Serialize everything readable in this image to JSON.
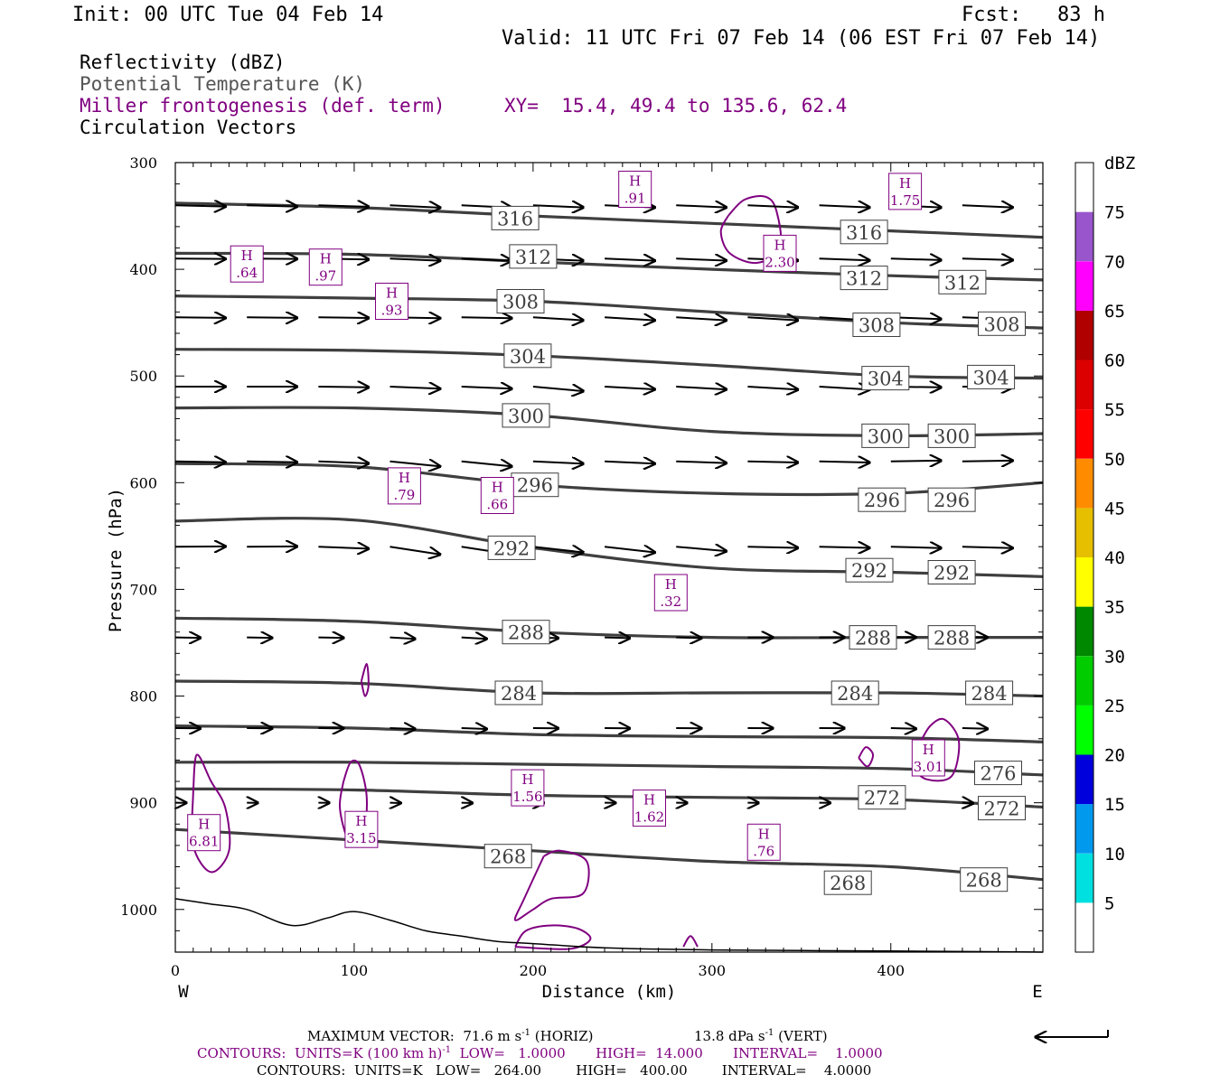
{
  "header": {
    "init": "Init: 00 UTC Tue 04 Feb 14",
    "fcst": "Fcst:   83 h",
    "valid": "Valid: 11 UTC Fri 07 Feb 14 (06 EST Fri 07 Feb 14)",
    "fields": [
      "Reflectivity (dBZ)",
      "Potential Temperature (K)",
      "Miller frontogenesis (def. term)",
      "Circulation Vectors"
    ],
    "xy": "XY=  15.4, 49.4 to 135.6, 62.4"
  },
  "colors": {
    "theta": "#3f3f3f",
    "fronto": "#800080",
    "vector": "#000000",
    "terrain": "#000000"
  },
  "chart_data": {
    "type": "contour",
    "xlabel": "Distance (km)",
    "ylabel": "Pressure (hPa)",
    "xlim": [
      0,
      485
    ],
    "ylim": [
      1040,
      300
    ],
    "x_ticks": [
      0,
      100,
      200,
      300,
      400
    ],
    "y_ticks": [
      300,
      400,
      500,
      600,
      700,
      800,
      900,
      1000
    ],
    "x_tick_labels": [
      "0",
      "100",
      "200",
      "300",
      "400"
    ],
    "y_tick_labels": [
      "300",
      "400",
      "500",
      "600",
      "700",
      "800",
      "900",
      "1000"
    ],
    "end_labels": {
      "left": "W",
      "right": "E"
    },
    "colorbar": {
      "title": "dBZ",
      "levels": [
        "5",
        "10",
        "15",
        "20",
        "25",
        "30",
        "35",
        "40",
        "45",
        "50",
        "55",
        "60",
        "65",
        "70",
        "75"
      ],
      "colors": [
        "#ffffff",
        "#00e0e0",
        "#0099ee",
        "#0000dd",
        "#00ff00",
        "#00cc00",
        "#008800",
        "#ffff00",
        "#e6bf00",
        "#ff8c00",
        "#ff0000",
        "#dd0000",
        "#b00000",
        "#ff00ff",
        "#9955cc",
        "#ffffff"
      ]
    },
    "theta_contours": [
      {
        "label": "316",
        "points": [
          [
            0,
            338
          ],
          [
            100,
            342
          ],
          [
            200,
            350
          ],
          [
            300,
            357
          ],
          [
            400,
            364
          ],
          [
            485,
            370
          ]
        ],
        "labels": [
          [
            190,
            352
          ],
          [
            385,
            365
          ]
        ]
      },
      {
        "label": "312",
        "points": [
          [
            0,
            385
          ],
          [
            100,
            386
          ],
          [
            200,
            393
          ],
          [
            300,
            400
          ],
          [
            400,
            406
          ],
          [
            485,
            410
          ]
        ],
        "labels": [
          [
            200,
            388
          ],
          [
            385,
            408
          ],
          [
            440,
            412
          ]
        ]
      },
      {
        "label": "308",
        "points": [
          [
            0,
            425
          ],
          [
            100,
            427
          ],
          [
            200,
            430
          ],
          [
            300,
            440
          ],
          [
            400,
            450
          ],
          [
            485,
            455
          ]
        ],
        "labels": [
          [
            193,
            430
          ],
          [
            392,
            452
          ],
          [
            462,
            451
          ]
        ]
      },
      {
        "label": "304",
        "points": [
          [
            0,
            475
          ],
          [
            100,
            476
          ],
          [
            200,
            481
          ],
          [
            300,
            490
          ],
          [
            400,
            500
          ],
          [
            485,
            502
          ]
        ],
        "labels": [
          [
            197,
            481
          ],
          [
            397,
            502
          ],
          [
            456,
            501
          ]
        ]
      },
      {
        "label": "300",
        "points": [
          [
            0,
            530
          ],
          [
            100,
            530
          ],
          [
            200,
            537
          ],
          [
            300,
            552
          ],
          [
            400,
            556
          ],
          [
            485,
            554
          ]
        ],
        "labels": [
          [
            196,
            537
          ],
          [
            397,
            556
          ],
          [
            434,
            556
          ]
        ]
      },
      {
        "label": "296",
        "points": [
          [
            0,
            582
          ],
          [
            100,
            585
          ],
          [
            200,
            602
          ],
          [
            300,
            610
          ],
          [
            400,
            610
          ],
          [
            485,
            600
          ]
        ],
        "labels": [
          [
            201,
            602
          ],
          [
            395,
            616
          ],
          [
            434,
            616
          ]
        ]
      },
      {
        "label": "292",
        "points": [
          [
            0,
            636
          ],
          [
            100,
            635
          ],
          [
            200,
            661
          ],
          [
            300,
            680
          ],
          [
            400,
            684
          ],
          [
            485,
            688
          ]
        ],
        "labels": [
          [
            188,
            661
          ],
          [
            388,
            682
          ],
          [
            434,
            684
          ]
        ]
      },
      {
        "label": "288",
        "points": [
          [
            0,
            727
          ],
          [
            100,
            730
          ],
          [
            200,
            740
          ],
          [
            300,
            745
          ],
          [
            400,
            745
          ],
          [
            485,
            745
          ]
        ],
        "labels": [
          [
            196,
            740
          ],
          [
            390,
            745
          ],
          [
            434,
            745
          ]
        ]
      },
      {
        "label": "284",
        "points": [
          [
            0,
            786
          ],
          [
            100,
            788
          ],
          [
            200,
            797
          ],
          [
            300,
            797
          ],
          [
            400,
            797
          ],
          [
            485,
            800
          ]
        ],
        "labels": [
          [
            192,
            797
          ],
          [
            380,
            797
          ],
          [
            455,
            797
          ]
        ]
      },
      {
        "label": "",
        "points": [
          [
            0,
            828
          ],
          [
            100,
            830
          ],
          [
            200,
            836
          ],
          [
            300,
            838
          ],
          [
            400,
            839
          ],
          [
            485,
            843
          ]
        ],
        "labels": []
      },
      {
        "label": "276",
        "points": [
          [
            0,
            862
          ],
          [
            100,
            862
          ],
          [
            200,
            864
          ],
          [
            300,
            866
          ],
          [
            400,
            868
          ],
          [
            485,
            874
          ]
        ],
        "labels": [
          [
            460,
            872
          ]
        ]
      },
      {
        "label": "272",
        "points": [
          [
            0,
            887
          ],
          [
            100,
            888
          ],
          [
            200,
            893
          ],
          [
            300,
            895
          ],
          [
            400,
            897
          ],
          [
            485,
            904
          ]
        ],
        "labels": [
          [
            395,
            895
          ],
          [
            462,
            905
          ]
        ]
      },
      {
        "label": "268",
        "points": [
          [
            0,
            925
          ],
          [
            100,
            935
          ],
          [
            200,
            945
          ],
          [
            300,
            955
          ],
          [
            400,
            960
          ],
          [
            485,
            972
          ]
        ],
        "labels": [
          [
            186,
            950
          ],
          [
            376,
            975
          ],
          [
            452,
            972
          ]
        ]
      }
    ],
    "fronto_maxima": [
      {
        "label": ".91",
        "x": 257,
        "y": 325
      },
      {
        "label": "1.75",
        "x": 408,
        "y": 327
      },
      {
        "label": "2.30",
        "x": 338,
        "y": 385
      },
      {
        "label": ".64",
        "x": 40,
        "y": 395
      },
      {
        "label": ".97",
        "x": 84,
        "y": 398
      },
      {
        "label": ".93",
        "x": 121,
        "y": 430
      },
      {
        "label": ".79",
        "x": 128,
        "y": 603
      },
      {
        "label": ".66",
        "x": 180,
        "y": 612
      },
      {
        "label": ".32",
        "x": 277,
        "y": 703
      },
      {
        "label": "3.01",
        "x": 421,
        "y": 858
      },
      {
        "label": "1.56",
        "x": 197,
        "y": 886
      },
      {
        "label": "1.62",
        "x": 265,
        "y": 905
      },
      {
        "label": "6.81",
        "x": 16,
        "y": 928
      },
      {
        "label": "3.15",
        "x": 104,
        "y": 925
      },
      {
        "label": ".76",
        "x": 329,
        "y": 937
      }
    ],
    "fronto_contours": [
      {
        "points": [
          [
            309,
            350
          ],
          [
            318,
            335
          ],
          [
            330,
            332
          ],
          [
            336,
            345
          ],
          [
            338,
            380
          ],
          [
            325,
            394
          ],
          [
            310,
            385
          ],
          [
            305,
            365
          ],
          [
            309,
            350
          ]
        ]
      },
      {
        "points": [
          [
            104,
            786
          ],
          [
            107,
            770
          ],
          [
            108,
            790
          ],
          [
            106,
            800
          ],
          [
            104,
            786
          ]
        ]
      },
      {
        "points": [
          [
            94,
            880
          ],
          [
            98,
            862
          ],
          [
            103,
            865
          ],
          [
            107,
            895
          ],
          [
            105,
            930
          ],
          [
            97,
            935
          ],
          [
            92,
            905
          ],
          [
            94,
            880
          ]
        ]
      },
      {
        "points": [
          [
            10,
            890
          ],
          [
            12,
            855
          ],
          [
            20,
            880
          ],
          [
            28,
            905
          ],
          [
            30,
            945
          ],
          [
            20,
            965
          ],
          [
            10,
            940
          ],
          [
            10,
            890
          ]
        ]
      },
      {
        "points": [
          [
            206,
            950
          ],
          [
            215,
            945
          ],
          [
            230,
            955
          ],
          [
            228,
            985
          ],
          [
            210,
            990
          ],
          [
            200,
            1000
          ],
          [
            190,
            1010
          ],
          [
            195,
            990
          ],
          [
            206,
            950
          ]
        ]
      },
      {
        "points": [
          [
            416,
            845
          ],
          [
            422,
            828
          ],
          [
            430,
            822
          ],
          [
            438,
            842
          ],
          [
            434,
            875
          ],
          [
            420,
            878
          ],
          [
            413,
            865
          ],
          [
            416,
            845
          ]
        ]
      },
      {
        "points": [
          [
            382,
            858
          ],
          [
            386,
            848
          ],
          [
            390,
            855
          ],
          [
            387,
            866
          ],
          [
            382,
            858
          ]
        ]
      },
      {
        "points": [
          [
            190,
            1035
          ],
          [
            196,
            1020
          ],
          [
            210,
            1015
          ],
          [
            225,
            1018
          ],
          [
            232,
            1028
          ],
          [
            220,
            1037
          ],
          [
            190,
            1035
          ]
        ]
      },
      {
        "points": [
          [
            284,
            1035
          ],
          [
            288,
            1025
          ],
          [
            292,
            1035
          ]
        ]
      }
    ],
    "terrain": [
      [
        0,
        990
      ],
      [
        20,
        995
      ],
      [
        40,
        1000
      ],
      [
        65,
        1015
      ],
      [
        85,
        1008
      ],
      [
        100,
        1002
      ],
      [
        120,
        1010
      ],
      [
        140,
        1020
      ],
      [
        160,
        1025
      ],
      [
        180,
        1030
      ],
      [
        200,
        1032
      ],
      [
        240,
        1036
      ],
      [
        300,
        1038
      ],
      [
        400,
        1039
      ],
      [
        485,
        1040
      ]
    ],
    "vectors": {
      "levels": [
        340,
        390,
        445,
        510,
        580,
        660,
        745,
        830,
        900
      ],
      "x": [
        0,
        40,
        80,
        120,
        160,
        200,
        240,
        280,
        320,
        360,
        400,
        440
      ]
    },
    "footer": {
      "line1a": "MAXIMUM VECTOR:  71.6 m s",
      "line1b": "(HORIZ)",
      "line1c": "13.8 dPa s",
      "line1d": "(VERT)",
      "sup": "-1",
      "line2a": "CONTOURS:  UNITS=K (100 km h)",
      "line2b": "  LOW=   1.0000       HIGH=  14.000       INTERVAL=    1.0000",
      "line3": "CONTOURS:  UNITS=K   LOW=   264.00        HIGH=   400.00        INTERVAL=    4.0000"
    }
  }
}
